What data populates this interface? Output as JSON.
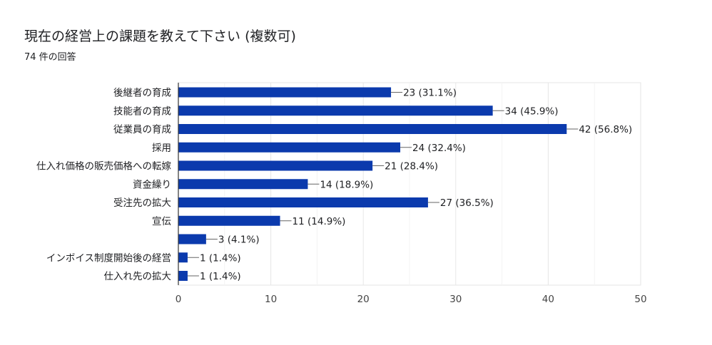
{
  "title": "現在の経営上の課題を教えて下さい (複数可)",
  "subtitle": "74 件の回答",
  "colors": {
    "bar": "#0b3aad",
    "grid": "#e6e6e6",
    "axis": "#333333",
    "leader": "#666666"
  },
  "chart_data": {
    "type": "bar",
    "orientation": "horizontal",
    "categories": [
      "後継者の育成",
      "技能者の育成",
      "従業員の育成",
      "採用",
      "仕入れ価格の販売価格への転嫁",
      "資金繰り",
      "受注先の拡大",
      "宣伝",
      "",
      "インボイス制度開始後の経営",
      "仕入れ先の拡大"
    ],
    "values": [
      23,
      34,
      42,
      24,
      21,
      14,
      27,
      11,
      3,
      1,
      1
    ],
    "data_labels": [
      "23 (31.1%)",
      "34 (45.9%)",
      "42 (56.8%)",
      "24 (32.4%)",
      "21 (28.4%)",
      "14 (18.9%)",
      "27 (36.5%)",
      "11 (14.9%)",
      "3 (4.1%)",
      "1 (1.4%)",
      "1 (1.4%)"
    ],
    "xlim": [
      0,
      50
    ],
    "xticks": [
      0,
      10,
      20,
      30,
      40,
      50
    ],
    "grid": true
  }
}
